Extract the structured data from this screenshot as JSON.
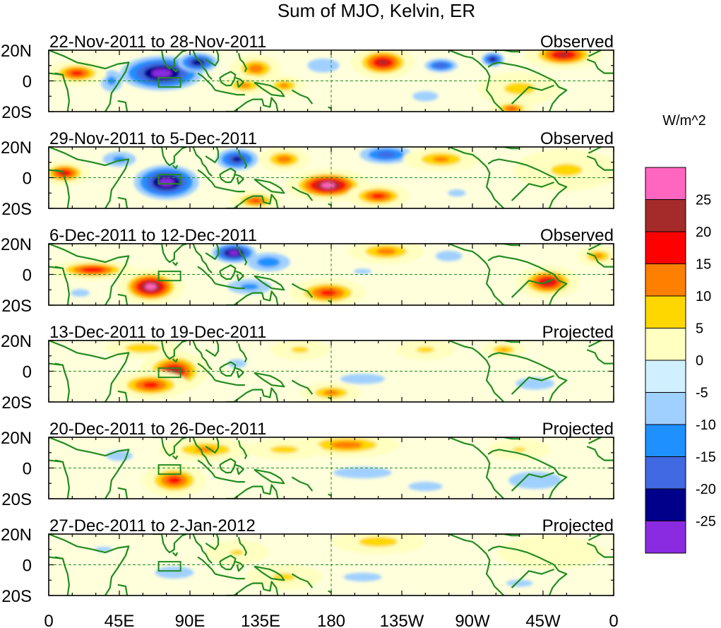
{
  "chart_data": {
    "type": "heatmap",
    "title": "Sum of MJO, Kelvin, ER",
    "colorbar": {
      "unit_label": "W/m^2",
      "levels": [
        "25",
        "20",
        "15",
        "10",
        "5",
        "0",
        "-5",
        "-10",
        "-15",
        "-20",
        "-25"
      ],
      "colors": [
        "#ff66c0",
        "#a52a2a",
        "#ff0000",
        "#ff7f00",
        "#ffd700",
        "#ffffc0",
        "#d0f0ff",
        "#a0d0ff",
        "#1e90ff",
        "#4169e1",
        "#00008b",
        "#8a2be2"
      ]
    },
    "x_ticks": [
      "0",
      "45E",
      "90E",
      "135E",
      "180",
      "135W",
      "90W",
      "45W",
      "0"
    ],
    "y_ticks": [
      "20N",
      "0",
      "20S"
    ],
    "lon_range": [
      0,
      360
    ],
    "lat_range": [
      -20,
      20
    ],
    "coastline_color": "#228b22",
    "panels": [
      {
        "date_range": "22-Nov-2011 to 28-Nov-2011",
        "status": "Observed",
        "anomalies": [
          {
            "lon": 72,
            "lat": 5,
            "value": -28,
            "rlon": 28,
            "rlat": 12
          },
          {
            "lon": 95,
            "lat": 12,
            "value": -24,
            "rlon": 14,
            "rlat": 7
          },
          {
            "lon": 40,
            "lat": 0,
            "value": -12,
            "rlon": 10,
            "rlat": 10
          },
          {
            "lon": 18,
            "lat": 5,
            "value": 18,
            "rlon": 14,
            "rlat": 6
          },
          {
            "lon": 132,
            "lat": 8,
            "value": 14,
            "rlon": 12,
            "rlat": 7
          },
          {
            "lon": 125,
            "lat": -3,
            "value": 12,
            "rlon": 12,
            "rlat": 5
          },
          {
            "lon": 150,
            "lat": -3,
            "value": 12,
            "rlon": 10,
            "rlat": 5
          },
          {
            "lon": 213,
            "lat": 12,
            "value": 22,
            "rlon": 15,
            "rlat": 8
          },
          {
            "lon": 250,
            "lat": 10,
            "value": -20,
            "rlon": 12,
            "rlat": 5
          },
          {
            "lon": 283,
            "lat": 14,
            "value": -24,
            "rlon": 8,
            "rlat": 5
          },
          {
            "lon": 328,
            "lat": 17,
            "value": 22,
            "rlon": 18,
            "rlat": 7
          },
          {
            "lon": 300,
            "lat": -5,
            "value": 8,
            "rlon": 20,
            "rlat": 8
          },
          {
            "lon": 295,
            "lat": -18,
            "value": 16,
            "rlon": 10,
            "rlat": 4
          },
          {
            "lon": 175,
            "lat": 10,
            "value": -9,
            "rlon": 18,
            "rlat": 8
          },
          {
            "lon": 240,
            "lat": -10,
            "value": -7,
            "rlon": 20,
            "rlat": 8
          }
        ]
      },
      {
        "date_range": "29-Nov-2011 to 5-Dec-2011",
        "status": "Observed",
        "anomalies": [
          {
            "lon": 75,
            "lat": -3,
            "value": -28,
            "rlon": 22,
            "rlat": 12
          },
          {
            "lon": 120,
            "lat": 12,
            "value": -22,
            "rlon": 15,
            "rlat": 8
          },
          {
            "lon": 45,
            "lat": 12,
            "value": -12,
            "rlon": 15,
            "rlat": 7
          },
          {
            "lon": 10,
            "lat": 3,
            "value": 20,
            "rlon": 12,
            "rlat": 6
          },
          {
            "lon": 178,
            "lat": -5,
            "value": 28,
            "rlon": 20,
            "rlat": 8
          },
          {
            "lon": 210,
            "lat": -12,
            "value": 18,
            "rlon": 15,
            "rlat": 6
          },
          {
            "lon": 132,
            "lat": -15,
            "value": 16,
            "rlon": 12,
            "rlat": 5
          },
          {
            "lon": 150,
            "lat": 12,
            "value": 14,
            "rlon": 12,
            "rlat": 6
          },
          {
            "lon": 215,
            "lat": 15,
            "value": -18,
            "rlon": 20,
            "rlat": 7
          },
          {
            "lon": 250,
            "lat": 12,
            "value": 12,
            "rlon": 18,
            "rlat": 6
          },
          {
            "lon": 330,
            "lat": 5,
            "value": 7,
            "rlon": 25,
            "rlat": 10
          },
          {
            "lon": 260,
            "lat": -10,
            "value": -6,
            "rlon": 20,
            "rlat": 8
          }
        ]
      },
      {
        "date_range": "6-Dec-2011 to 12-Dec-2011",
        "status": "Observed",
        "anomalies": [
          {
            "lon": 65,
            "lat": -8,
            "value": 28,
            "rlon": 16,
            "rlat": 9
          },
          {
            "lon": 28,
            "lat": 3,
            "value": 20,
            "rlon": 20,
            "rlat": 5
          },
          {
            "lon": 118,
            "lat": 14,
            "value": -28,
            "rlon": 15,
            "rlat": 7
          },
          {
            "lon": 140,
            "lat": 8,
            "value": -14,
            "rlon": 18,
            "rlat": 8
          },
          {
            "lon": 128,
            "lat": -8,
            "value": -12,
            "rlon": 20,
            "rlat": 7
          },
          {
            "lon": 178,
            "lat": -12,
            "value": 18,
            "rlon": 18,
            "rlat": 7
          },
          {
            "lon": 215,
            "lat": 15,
            "value": 13,
            "rlon": 18,
            "rlat": 6
          },
          {
            "lon": 318,
            "lat": -5,
            "value": 22,
            "rlon": 15,
            "rlat": 8
          },
          {
            "lon": 255,
            "lat": 12,
            "value": -9,
            "rlon": 15,
            "rlat": 6
          },
          {
            "lon": 200,
            "lat": 2,
            "value": -6,
            "rlon": 20,
            "rlat": 6
          },
          {
            "lon": 350,
            "lat": 12,
            "value": 12,
            "rlon": 10,
            "rlat": 5
          },
          {
            "lon": 20,
            "lat": -12,
            "value": -7,
            "rlon": 15,
            "rlat": 6
          }
        ]
      },
      {
        "date_range": "13-Dec-2011 to 19-Dec-2011",
        "status": "Projected",
        "anomalies": [
          {
            "lon": 80,
            "lat": 0,
            "value": 22,
            "rlon": 16,
            "rlat": 10
          },
          {
            "lon": 65,
            "lat": -9,
            "value": 18,
            "rlon": 18,
            "rlat": 7
          },
          {
            "lon": 60,
            "lat": 15,
            "value": 10,
            "rlon": 18,
            "rlat": 5
          },
          {
            "lon": 180,
            "lat": -14,
            "value": 13,
            "rlon": 14,
            "rlat": 5
          },
          {
            "lon": 160,
            "lat": 14,
            "value": 7,
            "rlon": 14,
            "rlat": 5
          },
          {
            "lon": 290,
            "lat": 14,
            "value": 11,
            "rlon": 10,
            "rlat": 4
          },
          {
            "lon": 240,
            "lat": 14,
            "value": 7,
            "rlon": 14,
            "rlat": 5
          },
          {
            "lon": 200,
            "lat": -5,
            "value": -9,
            "rlon": 25,
            "rlat": 6
          },
          {
            "lon": 120,
            "lat": 5,
            "value": -7,
            "rlon": 15,
            "rlat": 7
          },
          {
            "lon": 310,
            "lat": -8,
            "value": -8,
            "rlon": 25,
            "rlat": 8
          },
          {
            "lon": 30,
            "lat": 0,
            "value": -5,
            "rlon": 15,
            "rlat": 8
          }
        ]
      },
      {
        "date_range": "20-Dec-2011 to 26-Dec-2011",
        "status": "Projected",
        "anomalies": [
          {
            "lon": 80,
            "lat": -8,
            "value": 18,
            "rlon": 15,
            "rlat": 8
          },
          {
            "lon": 100,
            "lat": 12,
            "value": 12,
            "rlon": 22,
            "rlat": 6
          },
          {
            "lon": 190,
            "lat": 15,
            "value": 14,
            "rlon": 25,
            "rlat": 6
          },
          {
            "lon": 150,
            "lat": 12,
            "value": 8,
            "rlon": 18,
            "rlat": 5
          },
          {
            "lon": 45,
            "lat": 8,
            "value": -9,
            "rlon": 15,
            "rlat": 6
          },
          {
            "lon": 200,
            "lat": -3,
            "value": -10,
            "rlon": 30,
            "rlat": 6
          },
          {
            "lon": 240,
            "lat": -12,
            "value": -8,
            "rlon": 22,
            "rlat": 6
          },
          {
            "lon": 310,
            "lat": -8,
            "value": -9,
            "rlon": 30,
            "rlat": 10
          },
          {
            "lon": 300,
            "lat": 12,
            "value": 6,
            "rlon": 15,
            "rlat": 5
          }
        ]
      },
      {
        "date_range": "27-Dec-2011 to 2-Jan-2012",
        "status": "Projected",
        "anomalies": [
          {
            "lon": 210,
            "lat": 15,
            "value": 9,
            "rlon": 22,
            "rlat": 6
          },
          {
            "lon": 150,
            "lat": -8,
            "value": 7,
            "rlon": 18,
            "rlat": 6
          },
          {
            "lon": 120,
            "lat": 8,
            "value": 6,
            "rlon": 15,
            "rlat": 6
          },
          {
            "lon": 80,
            "lat": -5,
            "value": -8,
            "rlon": 25,
            "rlat": 8
          },
          {
            "lon": 35,
            "lat": 10,
            "value": -6,
            "rlon": 20,
            "rlat": 6
          },
          {
            "lon": 200,
            "lat": -8,
            "value": -7,
            "rlon": 30,
            "rlat": 7
          },
          {
            "lon": 300,
            "lat": -12,
            "value": -6,
            "rlon": 30,
            "rlat": 8
          },
          {
            "lon": 320,
            "lat": 8,
            "value": 5,
            "rlon": 25,
            "rlat": 8
          }
        ]
      }
    ]
  }
}
